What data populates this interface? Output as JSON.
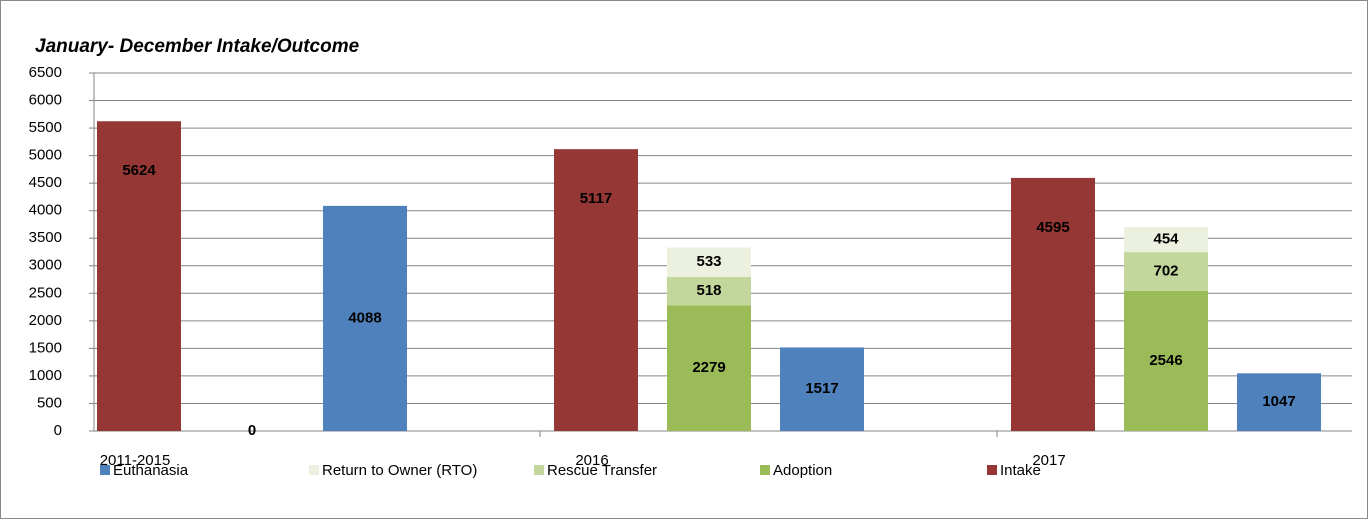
{
  "chart_data": {
    "type": "bar",
    "title": "January- December Intake/Outcome",
    "categories": [
      "2011-2015",
      "2016",
      "2017"
    ],
    "series": [
      {
        "name": "Euthanasia",
        "color": "#4f81bd",
        "values": [
          4088,
          1517,
          1047
        ]
      },
      {
        "name": "Return to Owner (RTO)",
        "color": "#ebf1de",
        "stack": "outcome",
        "values": [
          null,
          533,
          454
        ]
      },
      {
        "name": "Rescue Transfer",
        "color": "#c3d69b",
        "stack": "outcome",
        "values": [
          null,
          518,
          702
        ]
      },
      {
        "name": "Adoption",
        "color": "#9bbb59",
        "stack": "outcome",
        "values": [
          0,
          2279,
          2546
        ]
      },
      {
        "name": "Intake",
        "color": "#953735",
        "values": [
          5624,
          5117,
          4595
        ]
      }
    ],
    "ylim": [
      0,
      6500
    ],
    "yticks": [
      0,
      500,
      1000,
      1500,
      2000,
      2500,
      3000,
      3500,
      4000,
      4500,
      5000,
      5500,
      6000,
      6500
    ],
    "grid": true,
    "legend": "bottom"
  }
}
